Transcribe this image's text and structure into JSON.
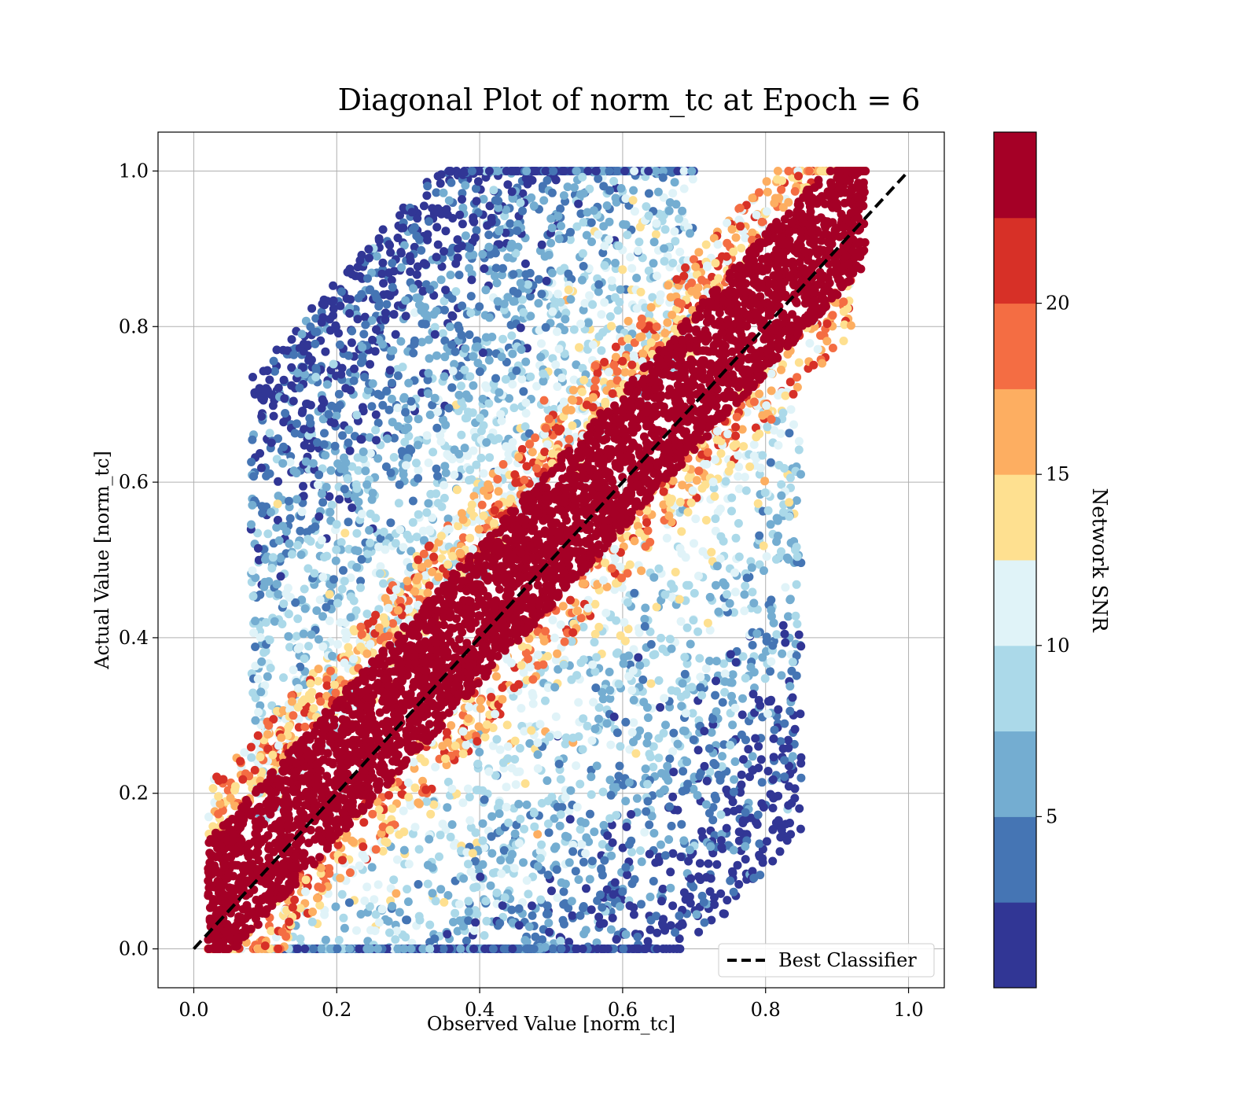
{
  "chart_data": {
    "type": "scatter",
    "title": "Diagonal Plot of norm_tc at Epoch = 6",
    "xlabel": "Observed Value [norm_tc]",
    "ylabel": "Actual Value [norm_tc]",
    "xlim": [
      -0.05,
      1.05
    ],
    "ylim": [
      -0.05,
      1.05
    ],
    "x_ticks": [
      0.0,
      0.2,
      0.4,
      0.6,
      0.8,
      1.0
    ],
    "y_ticks": [
      0.0,
      0.2,
      0.4,
      0.6,
      0.8,
      1.0
    ],
    "x_tick_labels": [
      "0.0",
      "0.2",
      "0.4",
      "0.6",
      "0.8",
      "1.0"
    ],
    "y_tick_labels": [
      "0.0",
      "0.2",
      "0.4",
      "0.6",
      "0.8",
      "1.0"
    ],
    "grid": true,
    "legend": {
      "position": "lower-right",
      "entries": [
        {
          "label": "Best Classifier",
          "style": "black dashed line"
        }
      ]
    },
    "reference_line": {
      "name": "Best Classifier",
      "x": [
        0.0,
        1.0
      ],
      "y": [
        0.0,
        1.0
      ],
      "color": "#000000",
      "dash": true
    },
    "colorbar": {
      "label": "Network SNR",
      "min": 0,
      "max": 25,
      "ticks": [
        5,
        10,
        15,
        20
      ],
      "tick_labels": [
        "5",
        "10",
        "15",
        "20"
      ],
      "colors": [
        "#313695",
        "#4575b4",
        "#74add1",
        "#abd9e9",
        "#e0f3f8",
        "#fee090",
        "#fdae61",
        "#f46d43",
        "#d73027",
        "#a50026"
      ]
    },
    "scatter_summary": {
      "high_snr_band": {
        "description": "high SNR points tightly along diagonal",
        "color": "#a50026",
        "x_range": [
          0.02,
          0.94
        ],
        "half_width_y": 0.09,
        "offset_y": 0.03
      },
      "upper_scatter": {
        "description": "low SNR points above the diagonal",
        "x_range": [
          0.1,
          0.75
        ]
      },
      "lower_scatter": {
        "description": "low SNR points below the diagonal",
        "x_range": [
          0.1,
          0.85
        ]
      }
    }
  }
}
